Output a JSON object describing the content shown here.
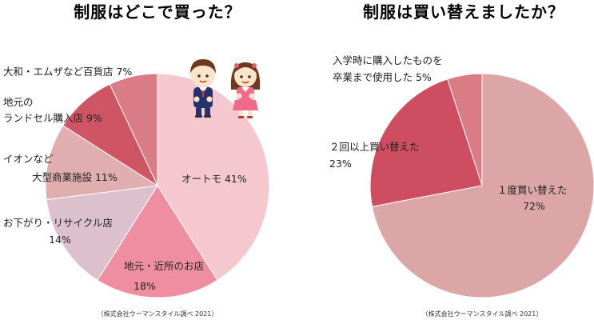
{
  "chart_data": [
    {
      "type": "pie",
      "title": "制服はどこで買った？",
      "source": "（株式会社ウーマンスタイル調べ 2021）",
      "slices": [
        {
          "label": [
            "オートモ 41%"
          ],
          "value": 41,
          "color": "#f5c8cf"
        },
        {
          "label": [
            "地元・近所のお店",
            "18%"
          ],
          "value": 18,
          "color": "#ee8ea0"
        },
        {
          "label": [
            "お下がり・リサイクル店",
            "14%"
          ],
          "value": 14,
          "color": "#dcc0cb"
        },
        {
          "label": [
            "イオンなど",
            "大型商業施設 11%"
          ],
          "value": 11,
          "color": "#e0aeae"
        },
        {
          "label": [
            "地元の",
            "ランドセル購入店 9%"
          ],
          "value": 9,
          "color": "#cf5565"
        },
        {
          "label": [
            "大和・エムザなど百貨店 7%"
          ],
          "value": 7,
          "color": "#d97c85"
        }
      ]
    },
    {
      "type": "pie",
      "title": "制服は買い替えましたか？",
      "source": "（株式会社ウーマンスタイル調べ 2021）",
      "slices": [
        {
          "label": [
            "１度買い替えた",
            "72%"
          ],
          "value": 72,
          "color": "#dca6a6"
        },
        {
          "label": [
            "２回以上買い替えた",
            "23%"
          ],
          "value": 23,
          "color": "#cd4e60"
        },
        {
          "label": [
            "入学時に購入したものを",
            "卒業まで使用した 5%"
          ],
          "value": 5,
          "color": "#d97c85"
        }
      ]
    }
  ]
}
